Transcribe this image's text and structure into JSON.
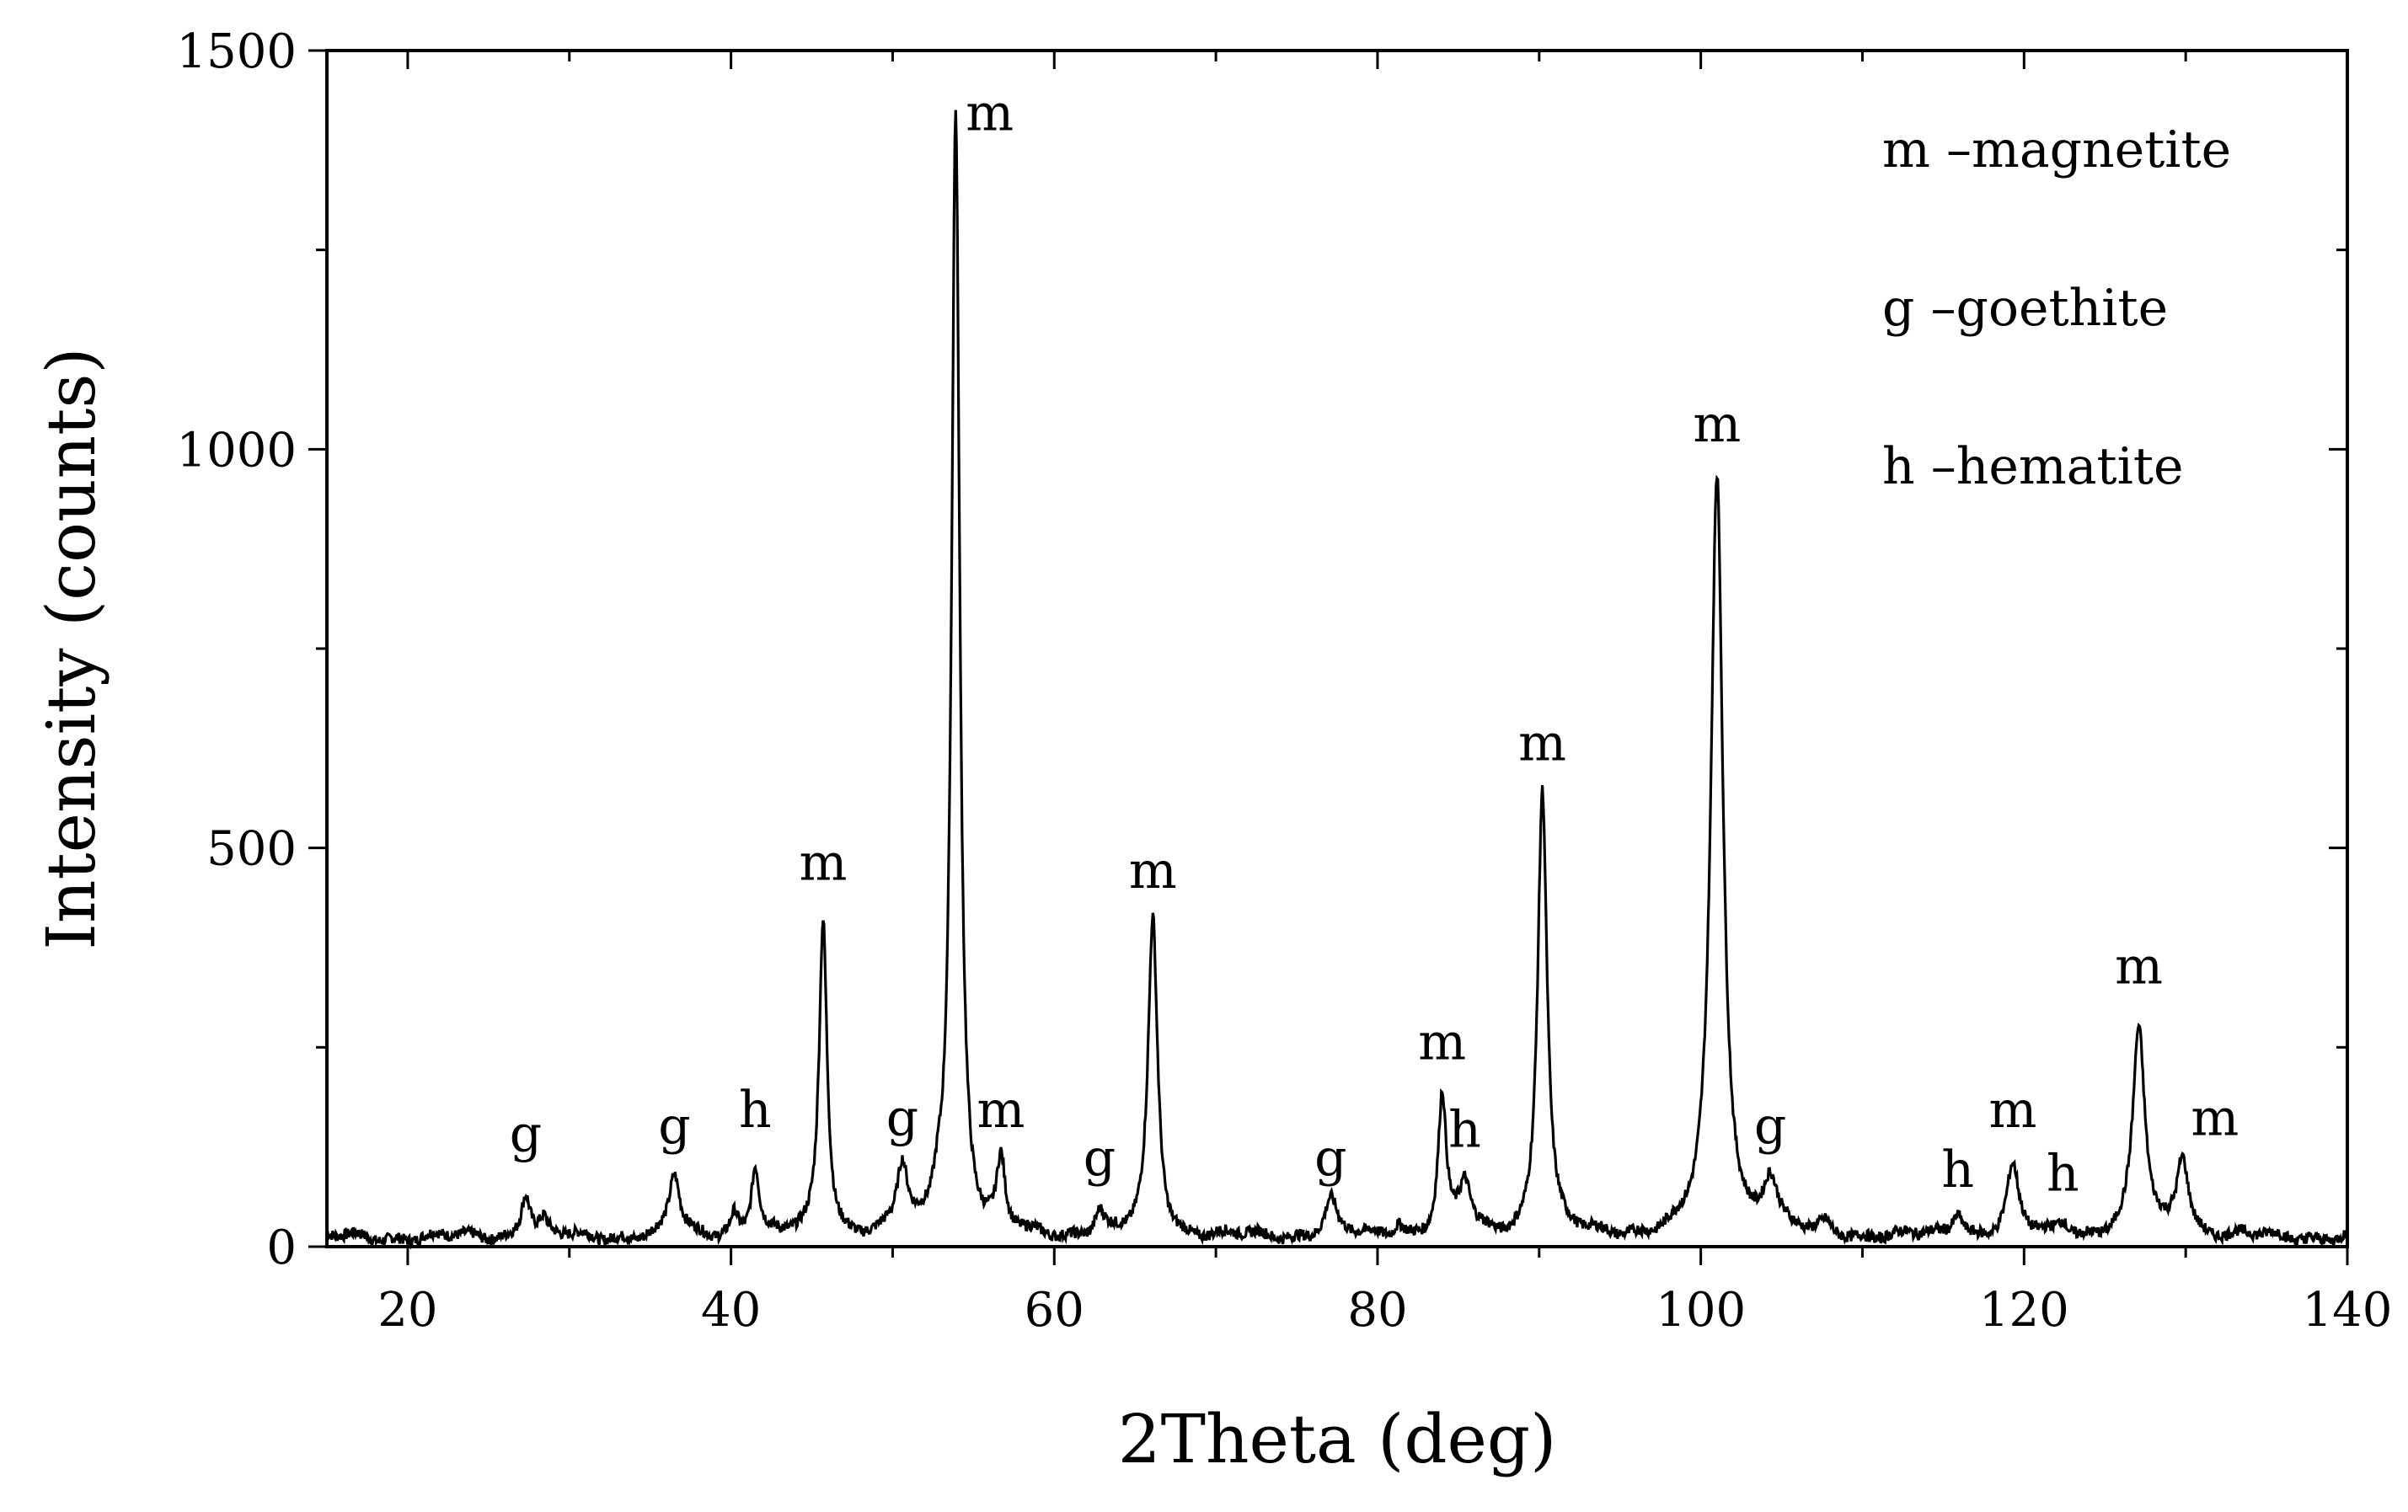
{
  "chart_data": {
    "type": "line",
    "title": "",
    "xlabel": "2Theta (deg)",
    "ylabel": "Intensity (counts)",
    "xlim": [
      15,
      140
    ],
    "ylim": [
      0,
      1500
    ],
    "x_ticks": [
      20,
      40,
      60,
      80,
      100,
      120,
      140
    ],
    "y_ticks": [
      0,
      500,
      1000,
      1500
    ],
    "grid": false,
    "legend_position": "top-right",
    "legend": [
      {
        "symbol": "m",
        "dash": "–",
        "name": "magnetite"
      },
      {
        "symbol": "g",
        "dash": "–",
        "name": "goethite"
      },
      {
        "symbol": "h",
        "dash": "–",
        "name": "hematite"
      }
    ],
    "baseline": 12,
    "peaks": [
      {
        "x": 27.3,
        "y": 68,
        "label": "g",
        "label_y": 120,
        "width": 0.35
      },
      {
        "x": 28.4,
        "y": 30,
        "label": "",
        "label_y": 0,
        "width": 0.3
      },
      {
        "x": 36.5,
        "y": 88,
        "label": "g",
        "label_y": 130,
        "width": 0.4
      },
      {
        "x": 40.2,
        "y": 40,
        "label": "",
        "label_y": 0,
        "width": 0.3
      },
      {
        "x": 41.5,
        "y": 100,
        "label": "h",
        "label_y": 150,
        "width": 0.3
      },
      {
        "x": 45.7,
        "y": 410,
        "label": "m",
        "label_y": 460,
        "width": 0.3
      },
      {
        "x": 50.6,
        "y": 95,
        "label": "g",
        "label_y": 140,
        "width": 0.4
      },
      {
        "x": 52.8,
        "y": 45,
        "label": "",
        "label_y": 0,
        "width": 0.35
      },
      {
        "x": 53.9,
        "y": 1420,
        "label": "m",
        "label_y": 1400,
        "width": 0.3
      },
      {
        "x": 56.7,
        "y": 98,
        "label": "m",
        "label_y": 150,
        "width": 0.3
      },
      {
        "x": 62.8,
        "y": 42,
        "label": "g",
        "label_y": 90,
        "width": 0.35
      },
      {
        "x": 66.1,
        "y": 410,
        "label": "m",
        "label_y": 450,
        "width": 0.35
      },
      {
        "x": 77.1,
        "y": 58,
        "label": "g",
        "label_y": 90,
        "width": 0.45
      },
      {
        "x": 81.3,
        "y": 28,
        "label": "",
        "label_y": 0,
        "width": 0.35
      },
      {
        "x": 84.0,
        "y": 185,
        "label": "m",
        "label_y": 235,
        "width": 0.3
      },
      {
        "x": 85.4,
        "y": 75,
        "label": "h",
        "label_y": 125,
        "width": 0.45
      },
      {
        "x": 90.2,
        "y": 575,
        "label": "m",
        "label_y": 610,
        "width": 0.35
      },
      {
        "x": 101.0,
        "y": 965,
        "label": "m",
        "label_y": 1010,
        "width": 0.45
      },
      {
        "x": 104.3,
        "y": 80,
        "label": "g",
        "label_y": 130,
        "width": 0.55
      },
      {
        "x": 107.7,
        "y": 24,
        "label": "",
        "label_y": 0,
        "width": 0.4
      },
      {
        "x": 115.9,
        "y": 42,
        "label": "h",
        "label_y": 75,
        "width": 0.4
      },
      {
        "x": 119.3,
        "y": 98,
        "label": "m",
        "label_y": 150,
        "width": 0.45
      },
      {
        "x": 122.4,
        "y": 30,
        "label": "h",
        "label_y": 70,
        "width": 0.4
      },
      {
        "x": 127.1,
        "y": 272,
        "label": "m",
        "label_y": 330,
        "width": 0.45
      },
      {
        "x": 129.8,
        "y": 112,
        "label": "m",
        "label_y": 140,
        "width": 0.45
      }
    ]
  }
}
